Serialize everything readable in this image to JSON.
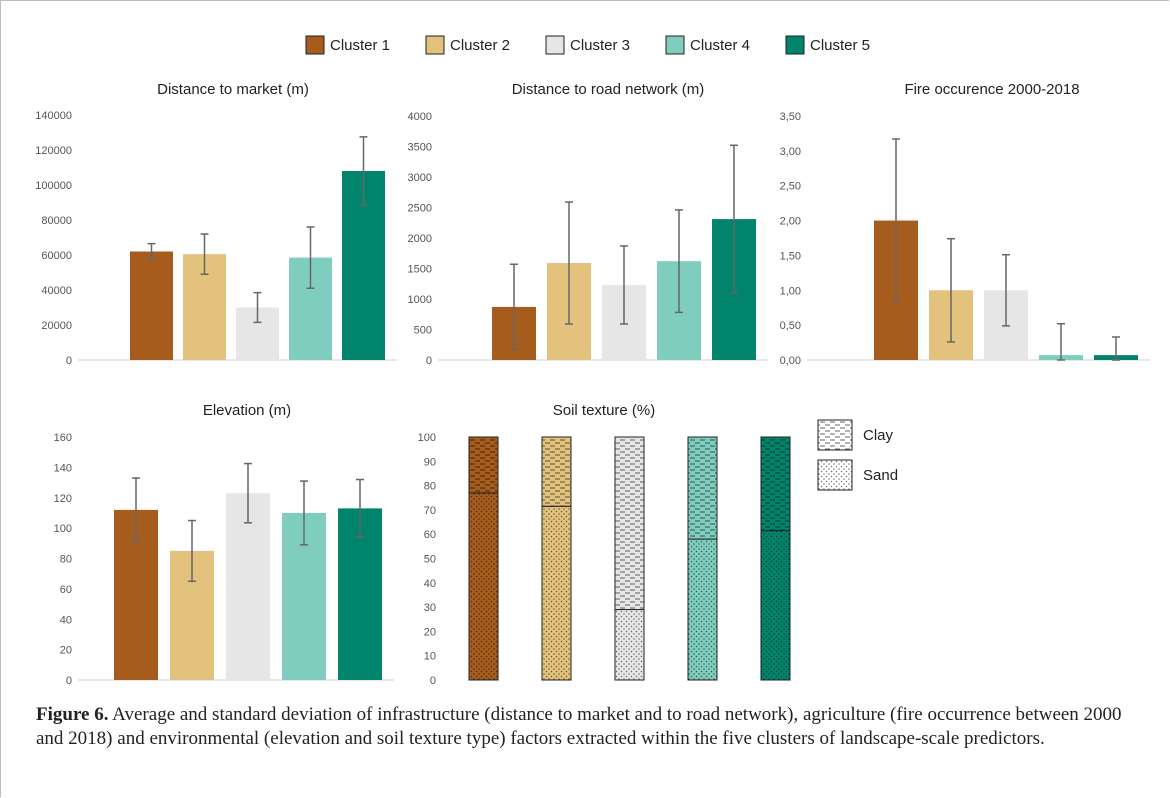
{
  "colors": {
    "cluster1": "#a65c1c",
    "cluster2": "#e2c27c",
    "cluster3": "#e6e6e6",
    "cluster4": "#7fcdbe",
    "cluster5": "#00856c",
    "errorbar": "#666666",
    "axis": "#d0d0d0"
  },
  "legend": {
    "placement": "top-center",
    "entries": [
      "Cluster 1",
      "Cluster 2",
      "Cluster 3",
      "Cluster 4",
      "Cluster 5"
    ]
  },
  "texture_legend": [
    "Clay",
    "Sand"
  ],
  "caption": {
    "label": "Figure 6.",
    "text": " Average and standard deviation of infrastructure (distance to market and to road network), agriculture (fire occurrence between 2000 and 2018) and environmental (elevation and soil texture type) factors extracted within the five clusters of landscape-scale predictors."
  },
  "chart_data": [
    {
      "type": "bar",
      "title": "Distance to market (m)",
      "categories": [
        "Cluster 1",
        "Cluster 2",
        "Cluster 3",
        "Cluster 4",
        "Cluster 5"
      ],
      "values": [
        62000,
        60500,
        30000,
        58500,
        108000
      ],
      "errors": [
        4500,
        11500,
        8500,
        17500,
        19500
      ],
      "ylim": [
        0,
        140000
      ],
      "yticks": [
        "0",
        "20000",
        "40000",
        "60000",
        "80000",
        "100000",
        "120000",
        "140000"
      ],
      "grid": false
    },
    {
      "type": "bar",
      "title": "Distance to road network (m)",
      "categories": [
        "Cluster 1",
        "Cluster 2",
        "Cluster 3",
        "Cluster 4",
        "Cluster 5"
      ],
      "values": [
        870,
        1590,
        1230,
        1620,
        2310
      ],
      "errors": [
        700,
        1000,
        640,
        840,
        1210
      ],
      "ylim": [
        0,
        4000
      ],
      "yticks": [
        "0",
        "500",
        "1000",
        "1500",
        "2000",
        "2500",
        "3000",
        "3500",
        "4000"
      ],
      "grid": false
    },
    {
      "type": "bar",
      "title": "Fire occurence 2000-2018",
      "categories": [
        "Cluster 1",
        "Cluster 2",
        "Cluster 3",
        "Cluster 4",
        "Cluster 5"
      ],
      "values": [
        2.0,
        1.0,
        1.0,
        0.07,
        0.07
      ],
      "errors": [
        1.17,
        0.74,
        0.51,
        0.45,
        0.26
      ],
      "ylim": [
        0,
        3.5
      ],
      "yticks": [
        "0,00",
        "0,50",
        "1,00",
        "1,50",
        "2,00",
        "2,50",
        "3,00",
        "3,50"
      ],
      "grid": false
    },
    {
      "type": "bar",
      "title": "Elevation (m)",
      "categories": [
        "Cluster 1",
        "Cluster 2",
        "Cluster 3",
        "Cluster 4",
        "Cluster 5"
      ],
      "values": [
        112,
        85,
        123,
        110,
        113
      ],
      "errors": [
        21,
        20,
        19.5,
        21,
        19
      ],
      "ylim": [
        0,
        160
      ],
      "yticks": [
        "0",
        "20",
        "40",
        "60",
        "80",
        "100",
        "120",
        "140",
        "160"
      ],
      "grid": false
    },
    {
      "type": "bar",
      "stacked": true,
      "title": "Soil texture (%)",
      "categories": [
        "Cluster 1",
        "Cluster 2",
        "Cluster 3",
        "Cluster 4",
        "Cluster 5"
      ],
      "series": [
        {
          "name": "Sand",
          "values": [
            77,
            71.5,
            29,
            58,
            61.5
          ]
        },
        {
          "name": "Clay",
          "values": [
            23,
            28.5,
            71,
            42,
            38.5
          ]
        }
      ],
      "ylim": [
        0,
        100
      ],
      "yticks": [
        "0",
        "10",
        "20",
        "30",
        "40",
        "50",
        "60",
        "70",
        "80",
        "90",
        "100"
      ],
      "grid": false
    }
  ]
}
